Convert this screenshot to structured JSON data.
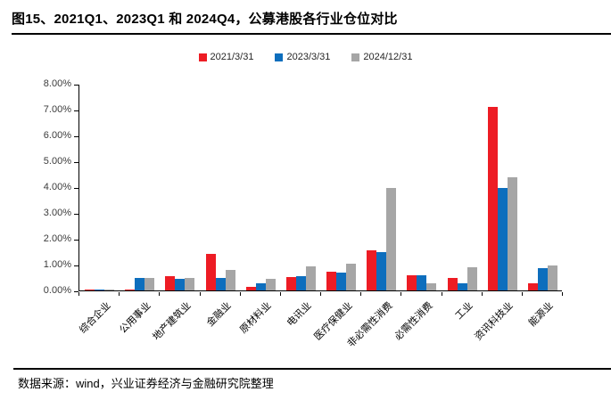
{
  "title": "图15、2021Q1、2023Q1 和 2024Q4，公募港股各行业仓位对比",
  "footer": {
    "source": "数据来源：wind，兴业证券经济与金融研究院整理"
  },
  "chart_data": {
    "type": "bar",
    "title": "图15、2021Q1、2023Q1 和 2024Q4，公募港股各行业仓位对比",
    "categories": [
      "综合企业",
      "公用事业",
      "地产建筑业",
      "金融业",
      "原材料业",
      "电讯业",
      "医疗保健业",
      "非必需性消费",
      "必需性消费",
      "工业",
      "资讯科技业",
      "能源业"
    ],
    "series": [
      {
        "name": "2021/3/31",
        "color": "#ED1C24",
        "values": [
          0.03,
          0.05,
          0.55,
          1.43,
          0.15,
          0.52,
          0.72,
          1.55,
          0.58,
          0.5,
          7.1,
          0.28
        ]
      },
      {
        "name": "2023/3/31",
        "color": "#0D6EBD",
        "values": [
          0.03,
          0.48,
          0.45,
          0.5,
          0.27,
          0.54,
          0.7,
          1.47,
          0.58,
          0.26,
          3.96,
          0.85
        ]
      },
      {
        "name": "2024/12/31",
        "color": "#A6A6A6",
        "values": [
          0.02,
          0.5,
          0.47,
          0.8,
          0.45,
          0.93,
          1.02,
          3.96,
          0.29,
          0.9,
          4.38,
          0.95
        ]
      }
    ],
    "xlabel": "",
    "ylabel": "",
    "ylim": [
      0,
      8
    ],
    "ytick_step": 1,
    "ytick_format": "0.00%",
    "legend_position": "top-center",
    "grid": false
  }
}
